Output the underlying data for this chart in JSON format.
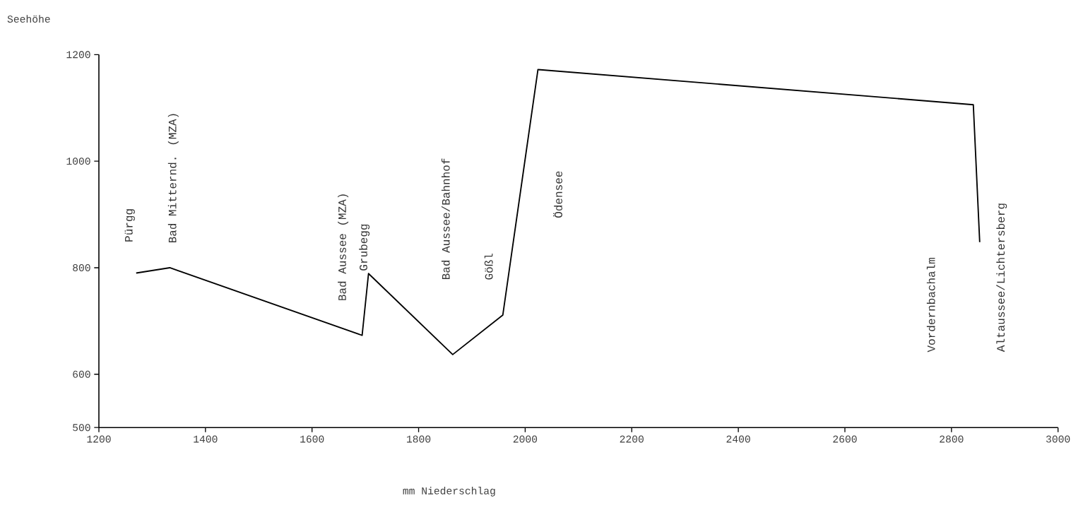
{
  "chart_data": {
    "type": "line",
    "xlabel": "mm Niederschlag",
    "ylabel": "Seehöhe",
    "x": [
      1270,
      1333,
      1694,
      1706,
      1864,
      1958,
      2024,
      2841,
      2853
    ],
    "series": [
      {
        "color": "#000000",
        "values": [
          790,
          800,
          673,
          789,
          637,
          711,
          1172,
          1106,
          848
        ]
      }
    ],
    "xlim": [
      1200,
      3000
    ],
    "xticks": [
      1200,
      1400,
      1600,
      1800,
      2000,
      2200,
      2400,
      2600,
      2800,
      3000
    ],
    "ylim": [
      500,
      1200
    ],
    "yticks": [
      500,
      600,
      800,
      1000,
      1200
    ],
    "grid": false,
    "marker": "none",
    "line_style": "solid",
    "annotations": [
      "Pürgg",
      "Bad Mitternd. (MZA)",
      "Bad Aussee (MZA)",
      "Grubegg",
      "Bad Aussee/Bahnhof",
      "Gößl",
      "Ödensee",
      "Vordernbachalm",
      "Altaussee/Lichtersberg"
    ]
  }
}
